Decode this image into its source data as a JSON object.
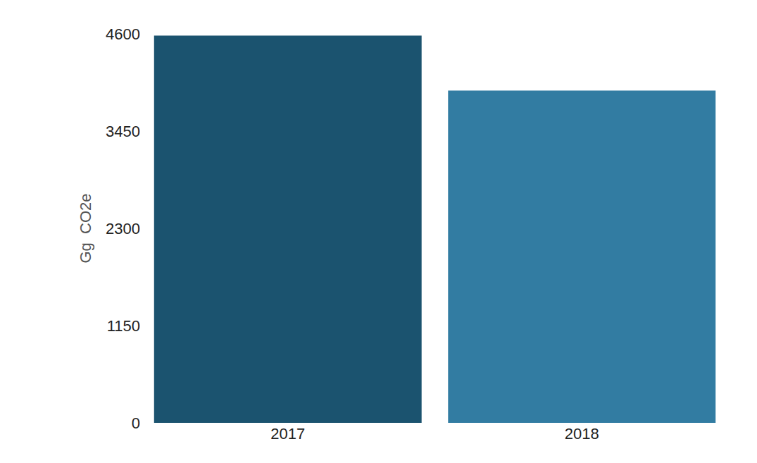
{
  "chart_data": {
    "type": "bar",
    "y_label": "Gg  CO2e",
    "categories": [
      "2017",
      "2018"
    ],
    "values": [
      4580,
      3930
    ],
    "colors": [
      "#1b536f",
      "#327ca2"
    ],
    "ylim": [
      0,
      4600
    ],
    "yticks": [
      0,
      1150,
      2300,
      3450,
      4600
    ],
    "grid": false
  }
}
